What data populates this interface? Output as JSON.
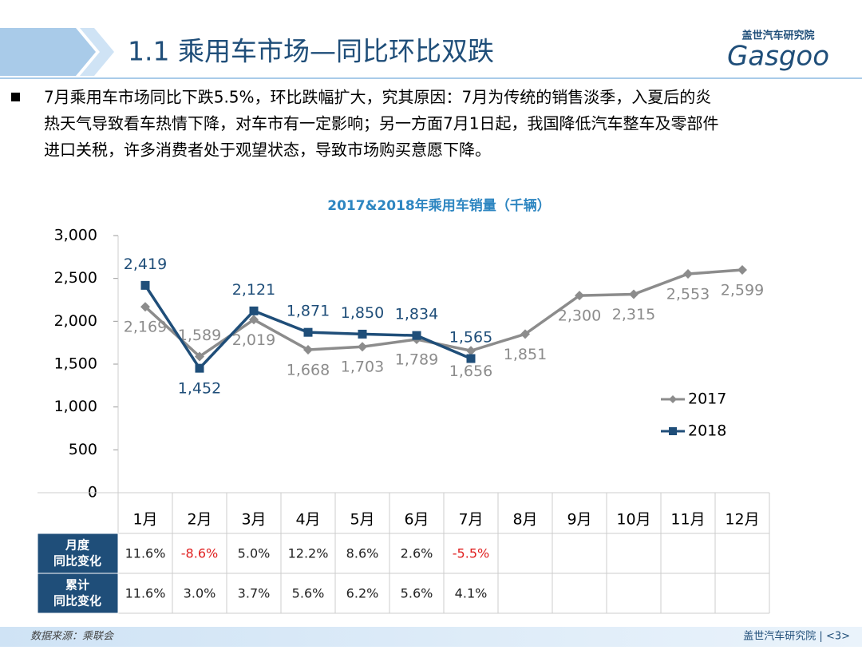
{
  "slide": {
    "title": "1.1 乘用车市场—同比环比双跌",
    "logo_cn": "盖世汽车研究院",
    "logo_en": "Gasgoo",
    "bullet": [
      "7月乘用车市场同比下跌5.5%，环比跌幅扩大，究其原因：7月为传统的销售淡季，入夏后的炎",
      "热天气导致看车热情下降，对车市有一定影响；另一方面7月1日起，我国降低汽车整车及零部件",
      "进口关税，许多消费者处于观望状态，导致市场购买意愿下降。"
    ],
    "source": "数据来源：乘联会",
    "footer": "盖世汽车研究院 | <3>"
  },
  "chart_data": {
    "type": "line",
    "title": "2017&2018年乘用车销量（千辆）",
    "categories": [
      "1月",
      "2月",
      "3月",
      "4月",
      "5月",
      "6月",
      "7月",
      "8月",
      "9月",
      "10月",
      "11月",
      "12月"
    ],
    "series": [
      {
        "name": "2017",
        "color": "#8c8c8c",
        "marker": "diamond",
        "values": [
          2169,
          1589,
          2019,
          1668,
          1703,
          1789,
          1656,
          1851,
          2300,
          2315,
          2553,
          2599
        ],
        "value_labels": [
          "2,169",
          "1,589",
          "2,019",
          "1,668",
          "1,703",
          "1,789",
          "1,656",
          "1,851",
          "2,300",
          "2,315",
          "2,553",
          "2,599"
        ]
      },
      {
        "name": "2018",
        "color": "#1f4e79",
        "marker": "square",
        "values": [
          2419,
          1452,
          2121,
          1871,
          1850,
          1834,
          1565,
          null,
          null,
          null,
          null,
          null
        ],
        "value_labels": [
          "2,419",
          "1,452",
          "2,121",
          "1,871",
          "1,850",
          "1,834",
          "1,565",
          null,
          null,
          null,
          null,
          null
        ]
      }
    ],
    "ylim": [
      0,
      3000
    ],
    "yticks": [
      0,
      500,
      {
        "value": 1000,
        "label": "1,000"
      },
      {
        "value": 1500,
        "label": "1,500"
      },
      {
        "value": 2000,
        "label": "2,000"
      },
      {
        "value": 2500,
        "label": "2,500"
      },
      {
        "value": 3000,
        "label": "3,000"
      }
    ],
    "legend": "right",
    "grid": false,
    "table": {
      "rows": [
        {
          "header": [
            "月度",
            "同比变化"
          ],
          "cells": [
            "11.6%",
            "-8.6%",
            "5.0%",
            "12.2%",
            "8.6%",
            "2.6%",
            "-5.5%"
          ]
        },
        {
          "header": [
            "累计",
            "同比变化"
          ],
          "cells": [
            "11.6%",
            "3.0%",
            "3.7%",
            "5.6%",
            "6.2%",
            "5.6%",
            "4.1%"
          ]
        }
      ]
    }
  }
}
